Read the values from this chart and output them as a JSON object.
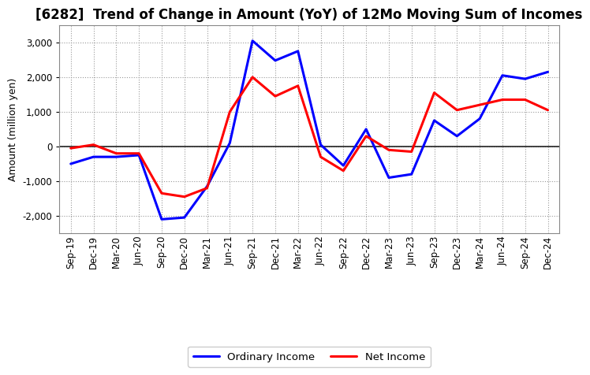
{
  "title": "[6282]  Trend of Change in Amount (YoY) of 12Mo Moving Sum of Incomes",
  "ylabel": "Amount (million yen)",
  "x_labels": [
    "Sep-19",
    "Dec-19",
    "Mar-20",
    "Jun-20",
    "Sep-20",
    "Dec-20",
    "Mar-21",
    "Jun-21",
    "Sep-21",
    "Dec-21",
    "Mar-22",
    "Jun-22",
    "Sep-22",
    "Dec-22",
    "Mar-23",
    "Jun-23",
    "Sep-23",
    "Dec-23",
    "Mar-24",
    "Jun-24",
    "Sep-24",
    "Dec-24"
  ],
  "ordinary_income": [
    -500,
    -300,
    -300,
    -250,
    -2100,
    -2050,
    -1150,
    100,
    3050,
    2480,
    2750,
    50,
    -550,
    500,
    -900,
    -800,
    750,
    300,
    800,
    2050,
    1950,
    2150
  ],
  "net_income": [
    -50,
    50,
    -200,
    -200,
    -1350,
    -1450,
    -1200,
    1000,
    2000,
    1450,
    1750,
    -300,
    -700,
    300,
    -100,
    -150,
    1550,
    1050,
    1200,
    1350,
    1350,
    1050
  ],
  "ordinary_color": "#0000ff",
  "net_color": "#ff0000",
  "line_width": 2.2,
  "ylim": [
    -2500,
    3500
  ],
  "yticks": [
    -2000,
    -1000,
    0,
    1000,
    2000,
    3000
  ],
  "background_color": "#ffffff",
  "grid_color": "#999999",
  "title_fontsize": 12,
  "axis_label_fontsize": 9,
  "tick_fontsize": 8.5,
  "legend_fontsize": 9.5
}
